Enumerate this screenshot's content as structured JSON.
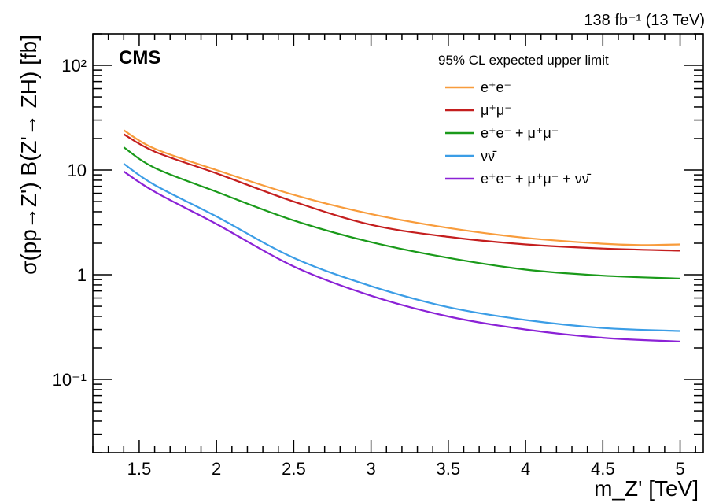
{
  "chart_data": {
    "type": "line",
    "lumi_label": "138 fb⁻¹ (13 TeV)",
    "experiment": "CMS",
    "legend_title": "95% CL expected upper limit",
    "xlabel": "m_Z' [TeV]",
    "ylabel": "σ(pp→Z') B(Z'→ ZH) [fb]",
    "xlim": [
      1.2,
      5.15
    ],
    "ylim": [
      0.02,
      200
    ],
    "yscale": "log",
    "xticks": [
      "1.5",
      "2",
      "2.5",
      "3",
      "3.5",
      "4",
      "4.5",
      "5"
    ],
    "yticks": [
      {
        "value": 0.1,
        "label": "10⁻¹"
      },
      {
        "value": 1,
        "label": "1"
      },
      {
        "value": 10,
        "label": "10"
      },
      {
        "value": 100,
        "label": "10²"
      }
    ],
    "legend_position": "top-right",
    "grid": false,
    "series": [
      {
        "name": "e⁺e⁻",
        "color": "#f89c3c",
        "x": [
          1.4,
          1.6,
          2.0,
          2.5,
          3.0,
          3.5,
          4.0,
          4.5,
          4.75,
          5.0
        ],
        "y": [
          24,
          16,
          10,
          5.8,
          3.8,
          2.8,
          2.25,
          1.98,
          1.92,
          1.95
        ]
      },
      {
        "name": "μ⁺μ⁻",
        "color": "#c41e1e",
        "x": [
          1.4,
          1.6,
          2.0,
          2.5,
          3.0,
          3.5,
          4.0,
          4.5,
          5.0
        ],
        "y": [
          22,
          15,
          9.3,
          5.0,
          3.0,
          2.3,
          1.95,
          1.78,
          1.7
        ]
      },
      {
        "name": "e⁺e⁻ + μ⁺μ⁻",
        "color": "#1a9a1a",
        "x": [
          1.4,
          1.6,
          2.0,
          2.5,
          3.0,
          3.5,
          4.0,
          4.5,
          5.0
        ],
        "y": [
          16.5,
          10.5,
          6.2,
          3.3,
          2.05,
          1.45,
          1.12,
          0.98,
          0.92
        ]
      },
      {
        "name": "νν̄",
        "color": "#3b9de6",
        "x": [
          1.4,
          1.6,
          2.0,
          2.5,
          3.0,
          3.5,
          4.0,
          4.5,
          5.0
        ],
        "y": [
          11.5,
          7.2,
          3.6,
          1.45,
          0.78,
          0.49,
          0.37,
          0.31,
          0.29
        ]
      },
      {
        "name": "e⁺e⁻ + μ⁺μ⁻ + νν̄",
        "color": "#8b22d6",
        "x": [
          1.4,
          1.6,
          2.0,
          2.5,
          3.0,
          3.5,
          4.0,
          4.5,
          5.0
        ],
        "y": [
          9.7,
          6.2,
          3.05,
          1.2,
          0.63,
          0.4,
          0.3,
          0.25,
          0.23
        ]
      }
    ]
  }
}
